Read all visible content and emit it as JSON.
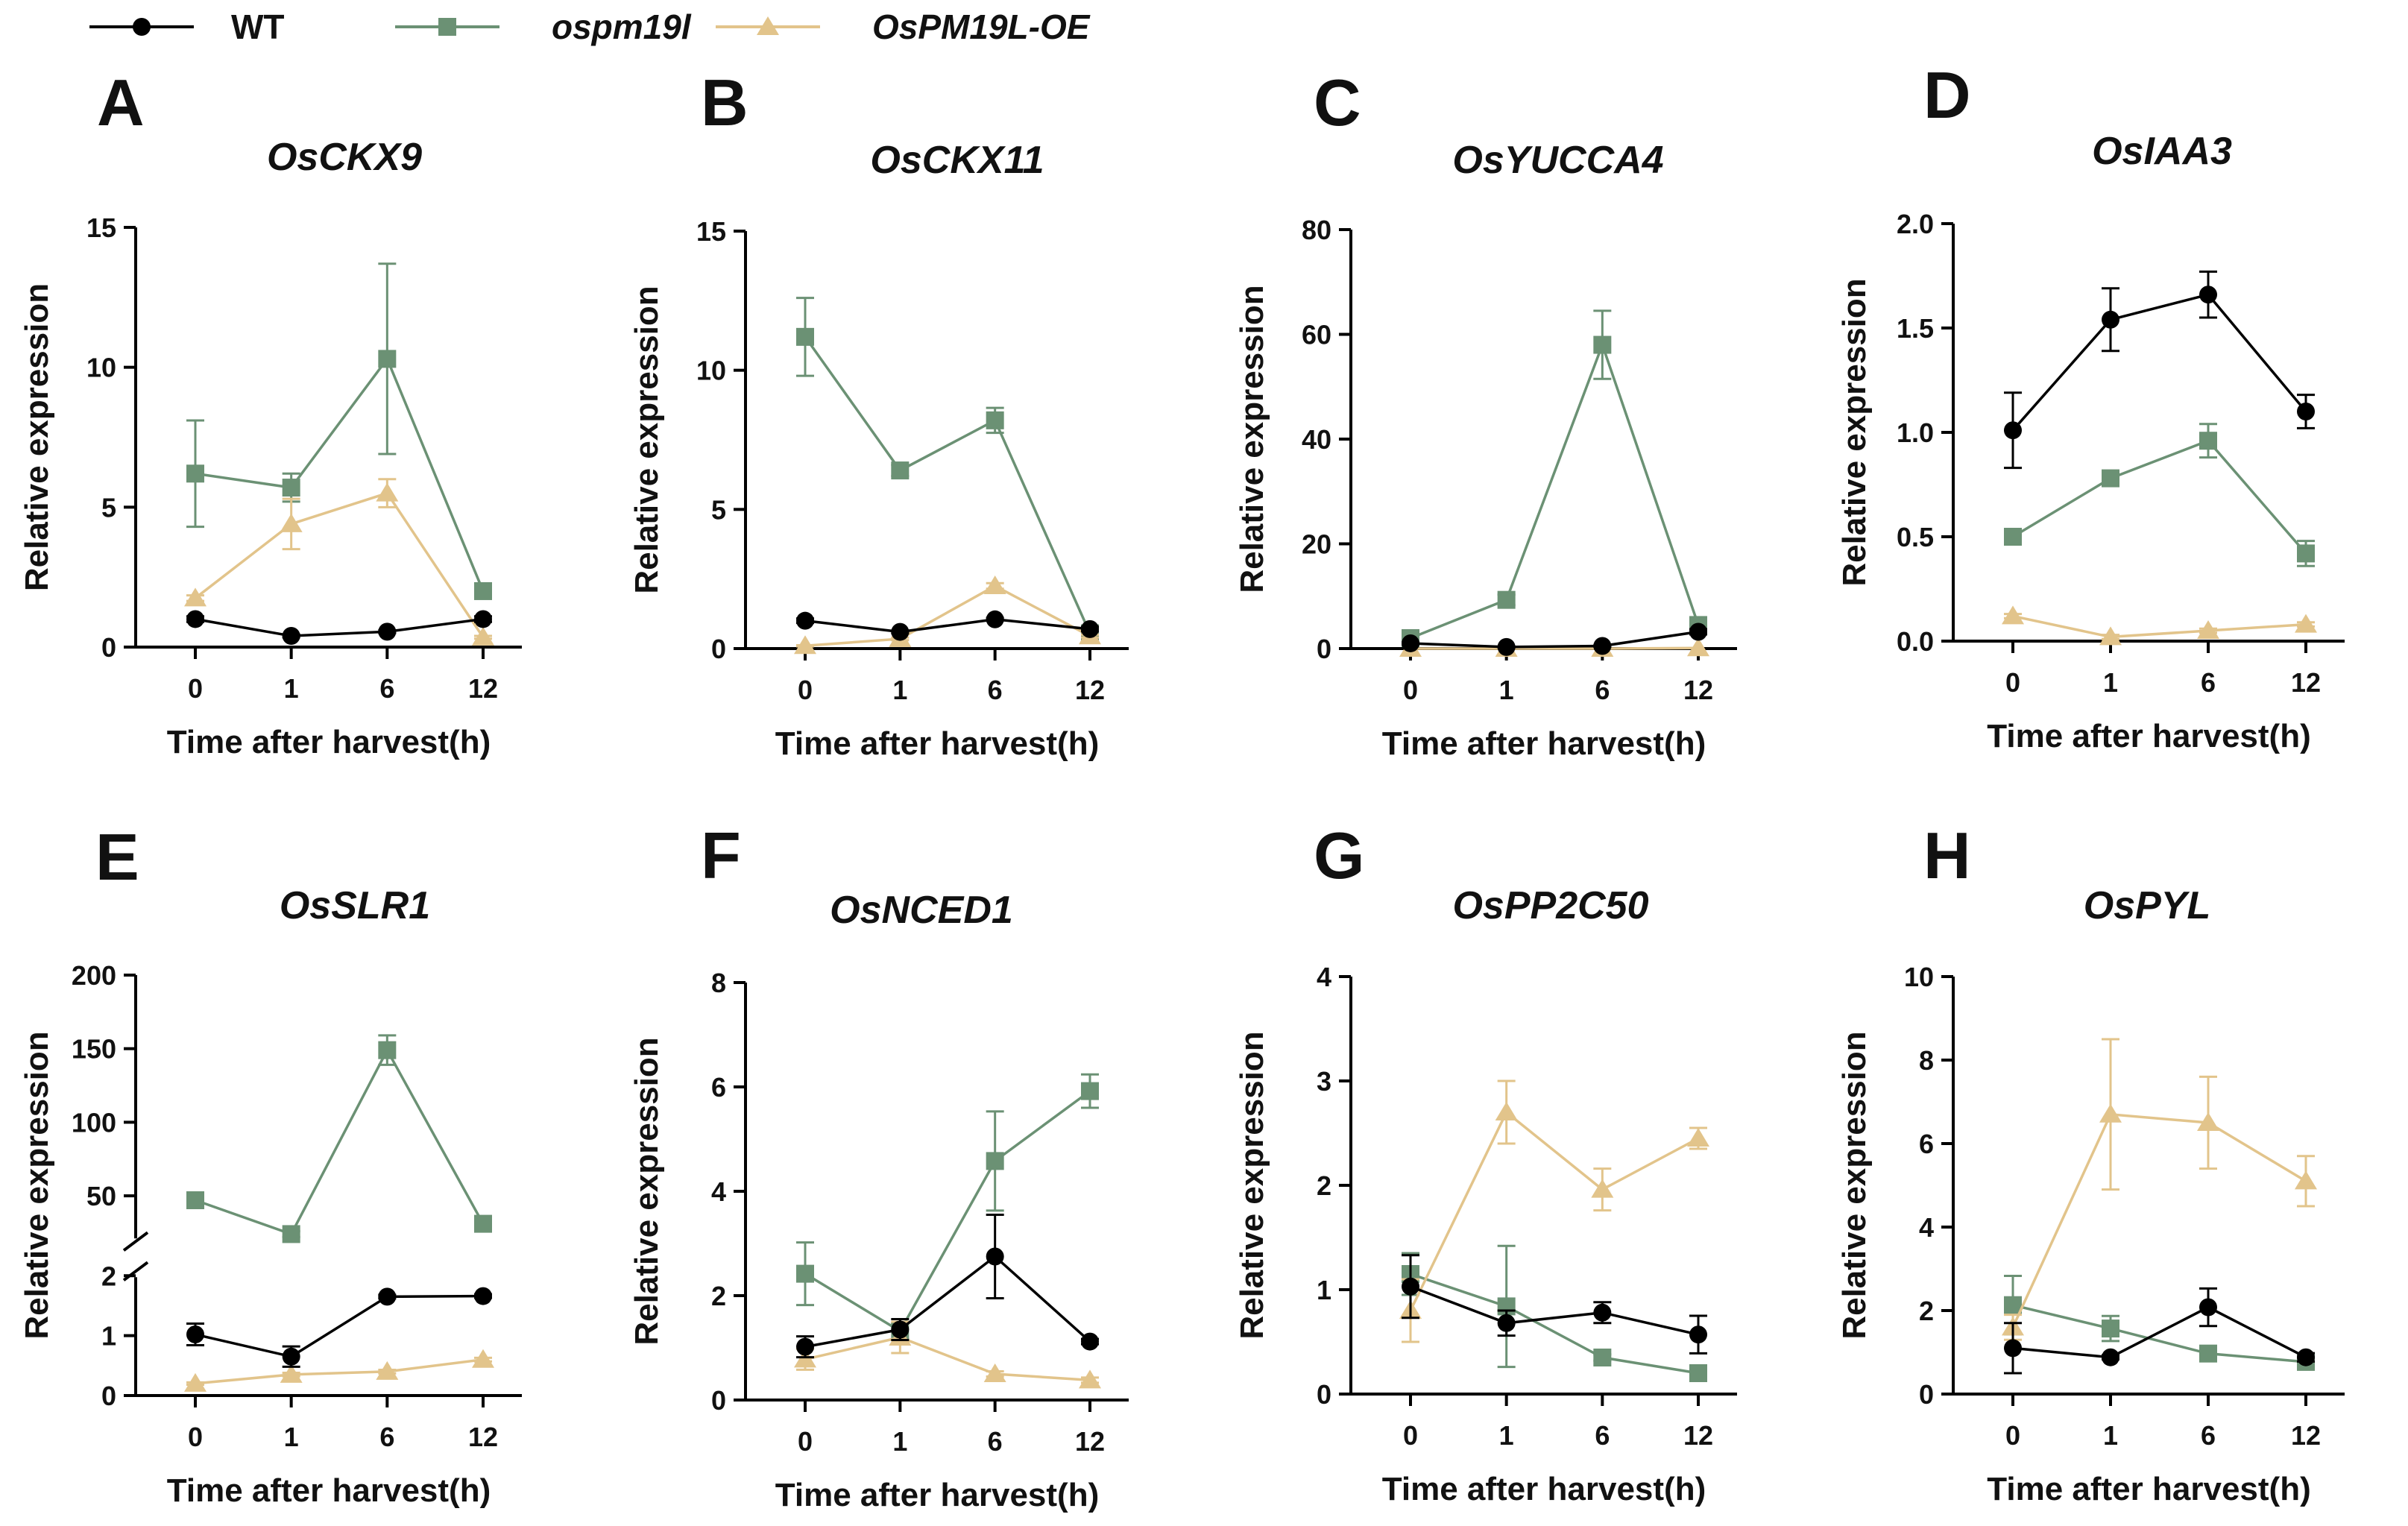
{
  "legend": [
    {
      "key": "wt",
      "label": "WT",
      "italic": false
    },
    {
      "key": "mut",
      "label": "ospm19l",
      "italic": true
    },
    {
      "key": "oe",
      "label": "OsPM19L-OE",
      "italic": true
    }
  ],
  "series_style": {
    "wt": {
      "color": "#000000",
      "marker": "circle"
    },
    "mut": {
      "color": "#6b9174",
      "marker": "square"
    },
    "oe": {
      "color": "#e2c48b",
      "marker": "triangle"
    }
  },
  "chart_data": [
    {
      "type": "line",
      "panel": "A",
      "title": "OsCKX9",
      "categories": [
        "0",
        "1",
        "6",
        "12"
      ],
      "xlabel": "Time after harvest(h)",
      "ylabel": "Relative expression",
      "ylim": [
        0,
        15
      ],
      "yticks": [
        0,
        5,
        10,
        15
      ],
      "series": [
        {
          "key": "wt",
          "name": "WT",
          "values": [
            1.0,
            0.4,
            0.55,
            1.0
          ],
          "errors": [
            0.1,
            0.05,
            0.05,
            0.1
          ]
        },
        {
          "key": "mut",
          "name": "ospm19l",
          "values": [
            6.2,
            5.7,
            10.3,
            2.0
          ],
          "errors": [
            1.9,
            0.5,
            3.4,
            0.15
          ]
        },
        {
          "key": "oe",
          "name": "OsPM19L-OE",
          "values": [
            1.75,
            4.4,
            5.5,
            0.35
          ],
          "errors": [
            0.1,
            0.9,
            0.5,
            0.05
          ]
        }
      ]
    },
    {
      "type": "line",
      "panel": "B",
      "title": "OsCKX11",
      "categories": [
        "0",
        "1",
        "6",
        "12"
      ],
      "xlabel": "Time after harvest(h)",
      "ylabel": "Relative expression",
      "ylim": [
        0,
        15
      ],
      "yticks": [
        0,
        5,
        10,
        15
      ],
      "series": [
        {
          "key": "wt",
          "name": "WT",
          "values": [
            1.0,
            0.6,
            1.05,
            0.7
          ],
          "errors": [
            0.08,
            0.05,
            0.05,
            0.08
          ]
        },
        {
          "key": "mut",
          "name": "ospm19l",
          "values": [
            11.2,
            6.4,
            8.2,
            0.55
          ],
          "errors": [
            1.4,
            0.2,
            0.45,
            0.05
          ]
        },
        {
          "key": "oe",
          "name": "OsPM19L-OE",
          "values": [
            0.1,
            0.35,
            2.25,
            0.45
          ],
          "errors": [
            0.02,
            0.05,
            0.1,
            0.05
          ]
        }
      ]
    },
    {
      "type": "line",
      "panel": "C",
      "title": "OsYUCCA4",
      "categories": [
        "0",
        "1",
        "6",
        "12"
      ],
      "xlabel": "Time after harvest(h)",
      "ylabel": "Relative expression",
      "ylim": [
        0,
        80
      ],
      "yticks": [
        0,
        20,
        40,
        60,
        80
      ],
      "series": [
        {
          "key": "wt",
          "name": "WT",
          "values": [
            1.0,
            0.3,
            0.5,
            3.2
          ],
          "errors": [
            0.2,
            0.1,
            0.2,
            0.5
          ]
        },
        {
          "key": "mut",
          "name": "ospm19l",
          "values": [
            2.0,
            9.3,
            58.0,
            4.5
          ],
          "errors": [
            0.5,
            1.0,
            6.5,
            0.7
          ]
        },
        {
          "key": "oe",
          "name": "OsPM19L-OE",
          "values": [
            0.0,
            0.0,
            0.0,
            0.1
          ],
          "errors": [
            0,
            0,
            0,
            0
          ]
        }
      ]
    },
    {
      "type": "line",
      "panel": "D",
      "title": "OsIAA3",
      "categories": [
        "0",
        "1",
        "6",
        "12"
      ],
      "xlabel": "Time after harvest(h)",
      "ylabel": "Relative expression",
      "ylim": [
        0,
        2.0
      ],
      "yticks": [
        0,
        0.5,
        1.0,
        1.5,
        2.0
      ],
      "series": [
        {
          "key": "wt",
          "name": "WT",
          "values": [
            1.01,
            1.54,
            1.66,
            1.1
          ],
          "errors": [
            0.18,
            0.15,
            0.11,
            0.08
          ]
        },
        {
          "key": "mut",
          "name": "ospm19l",
          "values": [
            0.5,
            0.78,
            0.96,
            0.42
          ],
          "errors": [
            0.02,
            0.03,
            0.08,
            0.06
          ]
        },
        {
          "key": "oe",
          "name": "OsPM19L-OE",
          "values": [
            0.12,
            0.02,
            0.05,
            0.08
          ],
          "errors": [
            0.01,
            0.01,
            0.01,
            0.01
          ]
        }
      ]
    },
    {
      "type": "line",
      "panel": "E",
      "title": "OsSLR1",
      "categories": [
        "0",
        "1",
        "6",
        "12"
      ],
      "xlabel": "Time after harvest(h)",
      "ylabel": "Relative expression",
      "ylim": [
        0,
        200
      ],
      "yticks": [
        0,
        1,
        2,
        50,
        100,
        150,
        200
      ],
      "axis_break": {
        "lower": [
          0,
          2
        ],
        "upper": [
          20,
          200
        ]
      },
      "series": [
        {
          "key": "wt",
          "name": "WT",
          "values": [
            1.02,
            0.65,
            1.65,
            1.66
          ],
          "errors": [
            0.18,
            0.17,
            0.03,
            0.03
          ]
        },
        {
          "key": "mut",
          "name": "ospm19l",
          "values": [
            47,
            24,
            149,
            31
          ],
          "errors": [
            3,
            2,
            10,
            3
          ]
        },
        {
          "key": "oe",
          "name": "OsPM19L-OE",
          "values": [
            0.2,
            0.35,
            0.4,
            0.6
          ],
          "errors": [
            0.02,
            0.03,
            0.03,
            0.03
          ]
        }
      ]
    },
    {
      "type": "line",
      "panel": "F",
      "title": "OsNCED1",
      "categories": [
        "0",
        "1",
        "6",
        "12"
      ],
      "xlabel": "Time after harvest(h)",
      "ylabel": "Relative expression",
      "ylim": [
        0,
        8
      ],
      "yticks": [
        0,
        2,
        4,
        6,
        8
      ],
      "series": [
        {
          "key": "wt",
          "name": "WT",
          "values": [
            1.02,
            1.35,
            2.75,
            1.12
          ],
          "errors": [
            0.2,
            0.2,
            0.8,
            0.05
          ]
        },
        {
          "key": "mut",
          "name": "ospm19l",
          "values": [
            2.42,
            1.32,
            4.58,
            5.92
          ],
          "errors": [
            0.6,
            0.15,
            0.95,
            0.32
          ]
        },
        {
          "key": "oe",
          "name": "OsPM19L-OE",
          "values": [
            0.78,
            1.2,
            0.5,
            0.38
          ],
          "errors": [
            0.2,
            0.3,
            0.05,
            0.05
          ]
        }
      ]
    },
    {
      "type": "line",
      "panel": "G",
      "title": "OsPP2C50",
      "categories": [
        "0",
        "1",
        "6",
        "12"
      ],
      "xlabel": "Time after harvest(h)",
      "ylabel": "Relative expression",
      "ylim": [
        0,
        4
      ],
      "yticks": [
        0,
        1,
        2,
        3,
        4
      ],
      "series": [
        {
          "key": "wt",
          "name": "WT",
          "values": [
            1.03,
            0.68,
            0.78,
            0.57
          ],
          "errors": [
            0.3,
            0.12,
            0.1,
            0.18
          ]
        },
        {
          "key": "mut",
          "name": "ospm19l",
          "values": [
            1.15,
            0.84,
            0.35,
            0.2
          ],
          "errors": [
            0.2,
            0.58,
            0.03,
            0.03
          ]
        },
        {
          "key": "oe",
          "name": "OsPM19L-OE",
          "values": [
            0.8,
            2.7,
            1.96,
            2.45
          ],
          "errors": [
            0.3,
            0.3,
            0.2,
            0.1
          ]
        }
      ]
    },
    {
      "type": "line",
      "panel": "H",
      "title": "OsPYL",
      "categories": [
        "0",
        "1",
        "6",
        "12"
      ],
      "xlabel": "Time after harvest(h)",
      "ylabel": "Relative expression",
      "ylim": [
        0,
        10
      ],
      "yticks": [
        0,
        2,
        4,
        6,
        8,
        10
      ],
      "series": [
        {
          "key": "wt",
          "name": "WT",
          "values": [
            1.1,
            0.88,
            2.08,
            0.88
          ],
          "errors": [
            0.6,
            0.05,
            0.45,
            0.1
          ]
        },
        {
          "key": "mut",
          "name": "ospm19l",
          "values": [
            2.13,
            1.57,
            0.97,
            0.77
          ],
          "errors": [
            0.7,
            0.3,
            0.05,
            0.05
          ]
        },
        {
          "key": "oe",
          "name": "OsPM19L-OE",
          "values": [
            1.6,
            6.7,
            6.5,
            5.1
          ],
          "errors": [
            0.3,
            1.8,
            1.1,
            0.6
          ]
        }
      ]
    }
  ]
}
